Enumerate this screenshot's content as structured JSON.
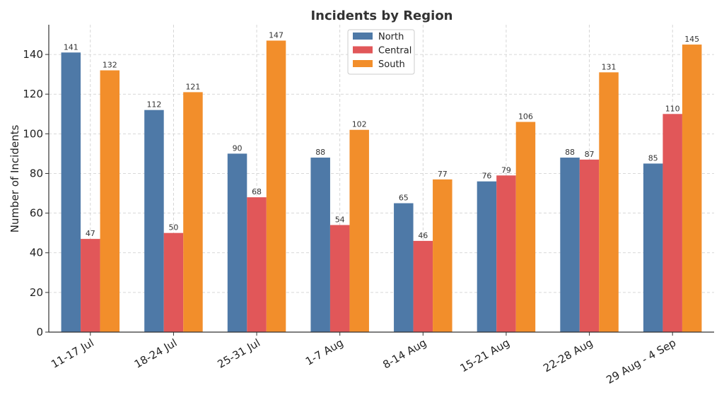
{
  "chart_data": {
    "type": "bar",
    "title": "Incidents by Region",
    "xlabel": "",
    "ylabel": "Number of Incidents",
    "ylim": [
      0,
      155
    ],
    "yticks": [
      0,
      20,
      40,
      60,
      80,
      100,
      120,
      140
    ],
    "grid": true,
    "legend_position": "top-center",
    "categories": [
      "11-17 Jul",
      "18-24 Jul",
      "25-31 Jul",
      "1-7 Aug",
      "8-14 Aug",
      "15-21 Aug",
      "22-28 Aug",
      "29 Aug - 4 Sep"
    ],
    "series": [
      {
        "name": "North",
        "color": "#4e79a7",
        "values": [
          141,
          112,
          90,
          88,
          65,
          76,
          88,
          85
        ]
      },
      {
        "name": "Central",
        "color": "#e15759",
        "values": [
          47,
          50,
          68,
          54,
          46,
          79,
          87,
          110
        ]
      },
      {
        "name": "South",
        "color": "#f28e2b",
        "values": [
          132,
          121,
          147,
          102,
          77,
          106,
          131,
          145
        ]
      }
    ]
  }
}
